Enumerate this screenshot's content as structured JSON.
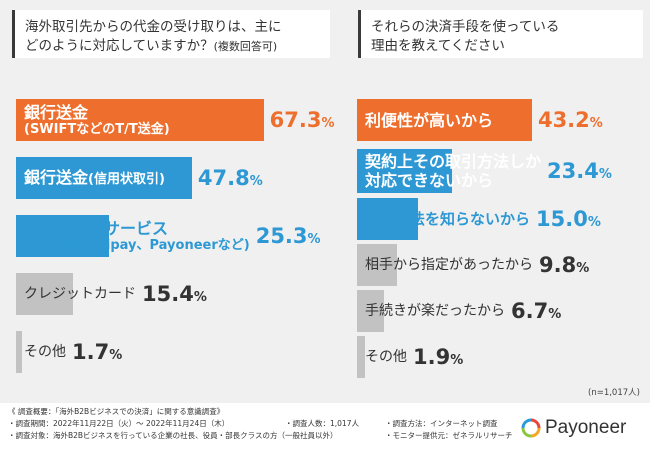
{
  "questions": {
    "left": {
      "line1": "海外取引先からの代金の受け取りは、主に",
      "line2": "どのように対応していますか？",
      "note": "(複数回答可)"
    },
    "right": {
      "line1": "それらの決済手段を使っている",
      "line2": "理由を教えてください"
    }
  },
  "sample_size": "(n=1,017人)",
  "footer": {
    "summary": "《 調査概要：「海外B2Bビジネスでの決済」に関する意識調査》",
    "period": "・調査期間：2022年11月22日（火）～ 2022年11月24日（木）",
    "respondents": "・調査人数：1,017人",
    "method": "・調査方法：インターネット調査",
    "target": "・調査対象：海外B2Bビジネスを行っている企業の社長、役員・部長クラスの方（一般社員以外）",
    "provider": "・モニター提供元：ゼネラルリサーチ"
  },
  "logo": {
    "name": "Payoneer"
  },
  "colors": {
    "orange": "#ee6f2d",
    "blue": "#2d98d4",
    "gray": "#c2c2c2",
    "white": "#ffffff",
    "dark": "#333333"
  },
  "chart_data": [
    {
      "type": "bar",
      "title": "海外取引先からの代金の受け取りは、主にどのように対応していますか？(複数回答可)",
      "unit": "%",
      "categories": [
        "銀行送金(SWIFTなどのT/T送金)",
        "銀行送金(信用状取引)",
        "外貨受取りサービス(PayPal、Alipay、Payoneerなど)",
        "クレジットカード",
        "その他"
      ],
      "values": [
        67.3,
        47.8,
        25.3,
        15.4,
        1.7
      ],
      "xlim": [
        0,
        100
      ],
      "labels": [
        {
          "line1": "銀行送金",
          "line2": "(SWIFTなどのT/T送金)",
          "value": "67.3"
        },
        {
          "line1": "銀行送金",
          "sub": "(信用状取引)",
          "value": "47.8"
        },
        {
          "line1": "外貨受取りサービス",
          "line2": "(PayPal、Alipay、Payoneerなど)",
          "value": "25.3"
        },
        {
          "line1": "クレジットカード",
          "value": "15.4"
        },
        {
          "line1": "その他",
          "value": "1.7"
        }
      ],
      "percent_sign": "%"
    },
    {
      "type": "bar",
      "title": "それらの決済手段を使っている理由を教えてください",
      "unit": "%",
      "categories": [
        "利便性が高いから",
        "契約上その取引方法しか対応できないから",
        "他の方法を知らないから",
        "相手から指定があったから",
        "手続きが楽だったから",
        "その他"
      ],
      "values": [
        43.2,
        23.4,
        15.0,
        9.8,
        6.7,
        1.9
      ],
      "xlim": [
        0,
        100
      ],
      "labels": [
        {
          "line1": "利便性が高いから",
          "value": "43.2"
        },
        {
          "line1": "契約上その取引方法しか",
          "line2": "対応できないから",
          "value": "23.4"
        },
        {
          "line1": "他の方法を知らないから",
          "value": "15.0"
        },
        {
          "line1": "相手から指定があったから",
          "value": "9.8"
        },
        {
          "line1": "手続きが楽だったから",
          "value": "6.7"
        },
        {
          "line1": "その他",
          "value": "1.9"
        }
      ],
      "percent_sign": "%"
    }
  ]
}
